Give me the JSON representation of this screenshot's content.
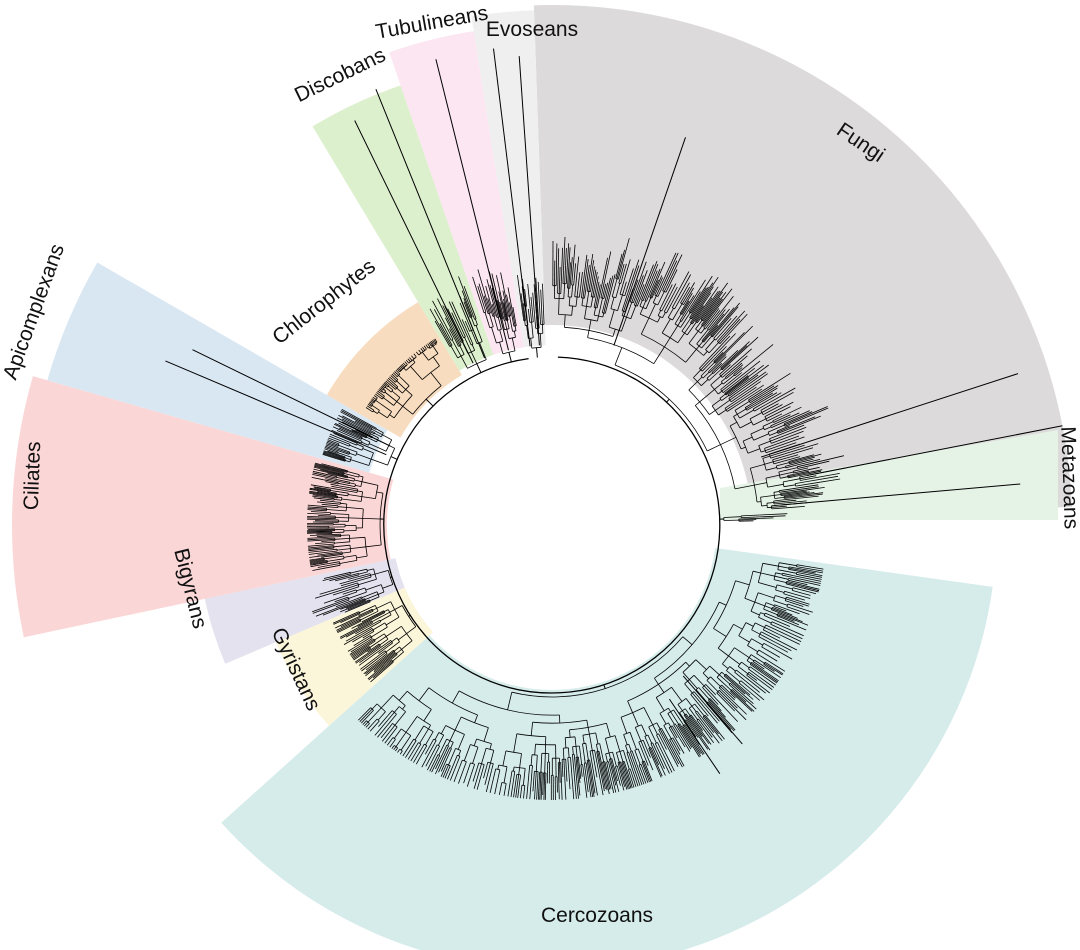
{
  "figure": {
    "type": "circular-phylogenetic-tree",
    "line_color": "#000000",
    "background": "#ffffff"
  },
  "clades": [
    {
      "id": "fungi",
      "label": "Fungi",
      "color": "#dcdadb"
    },
    {
      "id": "metazoans",
      "label": "Metazoans",
      "color": "#e5f2e6"
    },
    {
      "id": "cercozoans",
      "label": "Cercozoans",
      "color": "#d5eceb"
    },
    {
      "id": "gyristans",
      "label": "Gyristans",
      "color": "#fbf5d9"
    },
    {
      "id": "bigyrans",
      "label": "Bigyrans",
      "color": "#e3e2ee"
    },
    {
      "id": "ciliates",
      "label": "Ciliates",
      "color": "#fbd6d6"
    },
    {
      "id": "apicomplexans",
      "label": "Apicomplexans",
      "color": "#d9e7f3"
    },
    {
      "id": "chlorophytes",
      "label": "Chlorophytes",
      "color": "#f8dcbf"
    },
    {
      "id": "discobans",
      "label": "Discobans",
      "color": "#ddf0cd"
    },
    {
      "id": "tubulineans",
      "label": "Tubulineans",
      "color": "#fbe6f1"
    },
    {
      "id": "evoseans",
      "label": "Evoseans",
      "color": "#efefef"
    }
  ]
}
